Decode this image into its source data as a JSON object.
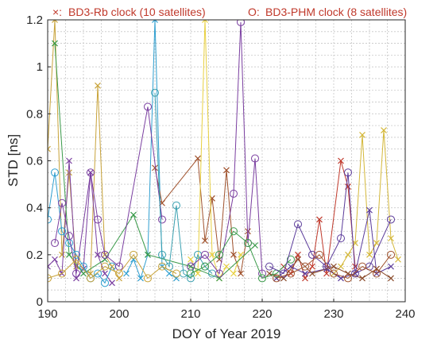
{
  "chart_data": {
    "type": "scatter",
    "title": "",
    "xlabel": "DOY of Year 2019",
    "ylabel": "STD [ns]",
    "xlim": [
      190,
      240
    ],
    "ylim": [
      0,
      1.2
    ],
    "xticks": [
      "190",
      "200",
      "210",
      "220",
      "230",
      "240"
    ],
    "yticks": [
      "0",
      "0.2",
      "0.4",
      "0.6",
      "0.8",
      "1",
      "1.2"
    ],
    "grid": true,
    "legend": [
      {
        "marker": "×:",
        "label": "BD3-Rb clock (10 satellites)"
      },
      {
        "marker": "O:",
        "label": "BD3-PHM clock (8 satellites)"
      }
    ],
    "series": [
      {
        "marker": "x",
        "color": "#c8a33a",
        "points": [
          [
            190,
            0.65
          ],
          [
            191,
            1.2
          ],
          [
            192,
            0.2
          ],
          [
            193,
            0.55
          ],
          [
            194,
            0.15
          ],
          [
            196,
            0.12
          ],
          [
            197,
            0.92
          ],
          [
            198,
            0.2
          ],
          [
            199,
            0.15
          ],
          [
            200,
            0.1
          ]
        ]
      },
      {
        "marker": "x",
        "color": "#7a3ea0",
        "points": [
          [
            190,
            0.15
          ],
          [
            191,
            0.18
          ],
          [
            192,
            0.12
          ],
          [
            193,
            0.6
          ],
          [
            194,
            0.1
          ],
          [
            195,
            0.14
          ],
          [
            196,
            0.55
          ],
          [
            197,
            0.2
          ],
          [
            198,
            0.12
          ],
          [
            199,
            0.08
          ]
        ]
      },
      {
        "marker": "x",
        "color": "#2f9fd0",
        "points": [
          [
            201,
            0.12
          ],
          [
            202,
            0.18
          ],
          [
            203,
            0.1
          ],
          [
            204,
            0.2
          ],
          [
            205,
            1.2
          ],
          [
            206,
            0.15
          ],
          [
            207,
            0.12
          ],
          [
            208,
            0.1
          ]
        ]
      },
      {
        "marker": "x",
        "color": "#a0522d",
        "points": [
          [
            205,
            0.57
          ],
          [
            206,
            0.42
          ],
          [
            211,
            0.61
          ],
          [
            212,
            0.26
          ],
          [
            213,
            0.44
          ],
          [
            214,
            0.18
          ],
          [
            215,
            0.56
          ],
          [
            216,
            0.2
          ],
          [
            217,
            0.12
          ],
          [
            218,
            0.3
          ]
        ]
      },
      {
        "marker": "x",
        "color": "#e8d040",
        "points": [
          [
            210,
            0.18
          ],
          [
            211,
            0.12
          ],
          [
            212,
            1.2
          ],
          [
            213,
            0.2
          ],
          [
            214,
            0.1
          ],
          [
            215,
            0.15
          ],
          [
            216,
            0.12
          ],
          [
            217,
            0.2
          ]
        ]
      },
      {
        "marker": "x",
        "color": "#3a9a4a",
        "points": [
          [
            191,
            1.1
          ],
          [
            193,
            0.2
          ],
          [
            195,
            0.12
          ],
          [
            198,
            0.18
          ],
          [
            202,
            0.37
          ],
          [
            204,
            0.2
          ],
          [
            210,
            0.15
          ],
          [
            214,
            0.1
          ],
          [
            219,
            0.24
          ]
        ]
      },
      {
        "marker": "x",
        "color": "#c0392b",
        "points": [
          [
            223,
            0.15
          ],
          [
            224,
            0.12
          ],
          [
            225,
            0.2
          ],
          [
            226,
            0.1
          ],
          [
            227,
            0.15
          ],
          [
            228,
            0.35
          ],
          [
            229,
            0.12
          ],
          [
            231,
            0.6
          ],
          [
            232,
            0.49
          ],
          [
            233,
            0.15
          ]
        ]
      },
      {
        "marker": "x",
        "color": "#d4b83a",
        "points": [
          [
            230,
            0.12
          ],
          [
            231,
            0.15
          ],
          [
            232,
            0.2
          ],
          [
            233,
            0.25
          ],
          [
            234,
            0.71
          ],
          [
            235,
            0.2
          ],
          [
            236,
            0.25
          ],
          [
            237,
            0.73
          ],
          [
            238,
            0.27
          ],
          [
            239,
            0.18
          ]
        ]
      },
      {
        "marker": "x",
        "color": "#5a3a9a",
        "points": [
          [
            222,
            0.1
          ],
          [
            224,
            0.15
          ],
          [
            226,
            0.12
          ],
          [
            229,
            0.14
          ],
          [
            231,
            0.1
          ],
          [
            233,
            0.12
          ],
          [
            235,
            0.39
          ],
          [
            236,
            0.12
          ],
          [
            238,
            0.15
          ]
        ]
      },
      {
        "marker": "x",
        "color": "#8a4a2a",
        "points": [
          [
            221,
            0.12
          ],
          [
            223,
            0.1
          ],
          [
            225,
            0.18
          ],
          [
            227,
            0.12
          ],
          [
            230,
            0.15
          ],
          [
            232,
            0.12
          ],
          [
            234,
            0.1
          ],
          [
            236,
            0.14
          ],
          [
            238,
            0.1
          ]
        ]
      },
      {
        "marker": "o",
        "color": "#2f9fd0",
        "points": [
          [
            190,
            0.35
          ],
          [
            191,
            0.55
          ],
          [
            192,
            0.3
          ],
          [
            193,
            0.25
          ],
          [
            194,
            0.2
          ],
          [
            195,
            0.15
          ],
          [
            196,
            0.1
          ],
          [
            197,
            0.12
          ],
          [
            198,
            0.08
          ],
          [
            199,
            0.15
          ]
        ]
      },
      {
        "marker": "o",
        "color": "#7a3ea0",
        "points": [
          [
            191,
            0.25
          ],
          [
            192,
            0.42
          ],
          [
            193,
            0.28
          ],
          [
            194,
            0.12
          ],
          [
            196,
            0.55
          ],
          [
            197,
            0.35
          ],
          [
            198,
            0.2
          ],
          [
            200,
            0.15
          ],
          [
            204,
            0.83
          ],
          [
            206,
            0.35
          ]
        ]
      },
      {
        "marker": "o",
        "color": "#3aa0b0",
        "points": [
          [
            205,
            0.89
          ],
          [
            206,
            0.2
          ],
          [
            207,
            0.15
          ],
          [
            208,
            0.41
          ],
          [
            209,
            0.12
          ],
          [
            210,
            0.1
          ],
          [
            211,
            0.2
          ],
          [
            212,
            0.15
          ],
          [
            213,
            0.12
          ]
        ]
      },
      {
        "marker": "o",
        "color": "#7a3ea0",
        "points": [
          [
            210,
            0.15
          ],
          [
            212,
            0.2
          ],
          [
            214,
            0.12
          ],
          [
            216,
            0.46
          ],
          [
            217,
            1.19
          ],
          [
            218,
            0.25
          ],
          [
            219,
            0.61
          ],
          [
            220,
            0.12
          ]
        ]
      },
      {
        "marker": "o",
        "color": "#c8a33a",
        "points": [
          [
            190,
            0.1
          ],
          [
            192,
            0.12
          ],
          [
            194,
            0.18
          ],
          [
            196,
            0.1
          ],
          [
            198,
            0.15
          ],
          [
            200,
            0.12
          ],
          [
            202,
            0.2
          ],
          [
            204,
            0.1
          ],
          [
            206,
            0.15
          ],
          [
            208,
            0.12
          ]
        ]
      },
      {
        "marker": "o",
        "color": "#3a9a4a",
        "points": [
          [
            210,
            0.12
          ],
          [
            212,
            0.15
          ],
          [
            214,
            0.2
          ],
          [
            216,
            0.3
          ],
          [
            218,
            0.25
          ],
          [
            220,
            0.1
          ],
          [
            222,
            0.12
          ],
          [
            224,
            0.18
          ]
        ]
      },
      {
        "marker": "o",
        "color": "#5a3a9a",
        "points": [
          [
            221,
            0.15
          ],
          [
            223,
            0.12
          ],
          [
            225,
            0.33
          ],
          [
            227,
            0.2
          ],
          [
            229,
            0.15
          ],
          [
            231,
            0.27
          ],
          [
            232,
            0.55
          ],
          [
            233,
            0.12
          ],
          [
            235,
            0.15
          ],
          [
            238,
            0.35
          ]
        ]
      },
      {
        "marker": "o",
        "color": "#a0522d",
        "points": [
          [
            222,
            0.1
          ],
          [
            224,
            0.12
          ],
          [
            226,
            0.15
          ],
          [
            228,
            0.2
          ],
          [
            230,
            0.12
          ],
          [
            232,
            0.1
          ],
          [
            234,
            0.15
          ],
          [
            236,
            0.12
          ],
          [
            238,
            0.2
          ]
        ]
      }
    ]
  }
}
